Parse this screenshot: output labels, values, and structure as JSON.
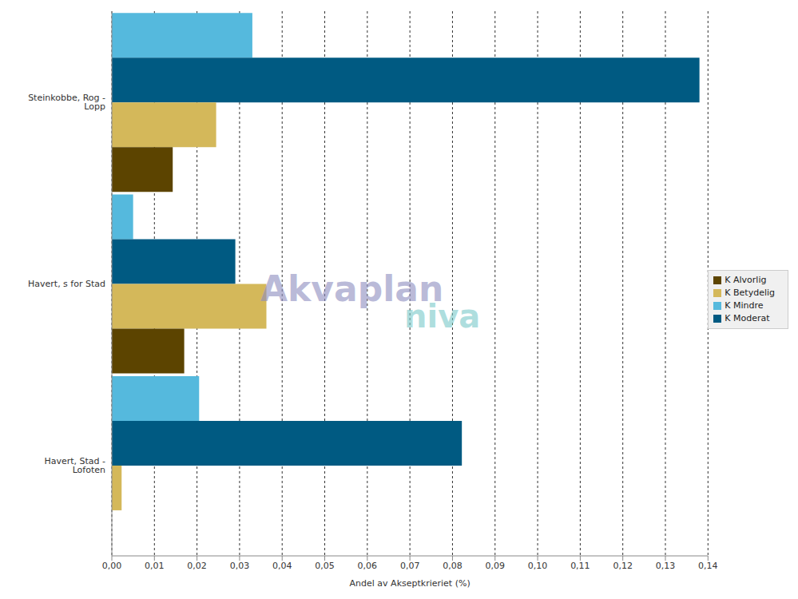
{
  "chart_data": {
    "type": "bar",
    "orientation": "horizontal",
    "categories": [
      "Steinkobbe, Rog  - Lopp",
      "Havert, s for Stad",
      "Havert, Stad - Lofoten"
    ],
    "series": [
      {
        "name": "K Mindre",
        "color": "#55b9dd",
        "values": [
          0.033,
          0.005,
          0.0205
        ]
      },
      {
        "name": "K Moderat",
        "color": "#005a82",
        "values": [
          0.138,
          0.029,
          0.0822
        ]
      },
      {
        "name": "K Betydelig",
        "color": "#d4b85a",
        "values": [
          0.0245,
          0.0363,
          0.0023
        ]
      },
      {
        "name": "K Alvorlig",
        "color": "#5c4400",
        "values": [
          0.0143,
          0.017,
          0
        ]
      }
    ],
    "x_label": "Andel av Akseptkrieriet (%)",
    "xlim": [
      0,
      0.14
    ],
    "xticks": [
      {
        "value": 0,
        "label": "0,00"
      },
      {
        "value": 0.01,
        "label": "0,01"
      },
      {
        "value": 0.02,
        "label": "0,02"
      },
      {
        "value": 0.03,
        "label": "0,03"
      },
      {
        "value": 0.04,
        "label": "0,04"
      },
      {
        "value": 0.05,
        "label": "0,05"
      },
      {
        "value": 0.06,
        "label": "0,06"
      },
      {
        "value": 0.07,
        "label": "0,07"
      },
      {
        "value": 0.08,
        "label": "0,08"
      },
      {
        "value": 0.09,
        "label": "0,09"
      },
      {
        "value": 0.1,
        "label": "0,10"
      },
      {
        "value": 0.11,
        "label": "0,11"
      },
      {
        "value": 0.12,
        "label": "0,12"
      },
      {
        "value": 0.13,
        "label": "0,13"
      },
      {
        "value": 0.14,
        "label": "0,14"
      }
    ],
    "grid": true,
    "legend": "right",
    "annotations": [
      "Akvaplan",
      "niva"
    ]
  }
}
